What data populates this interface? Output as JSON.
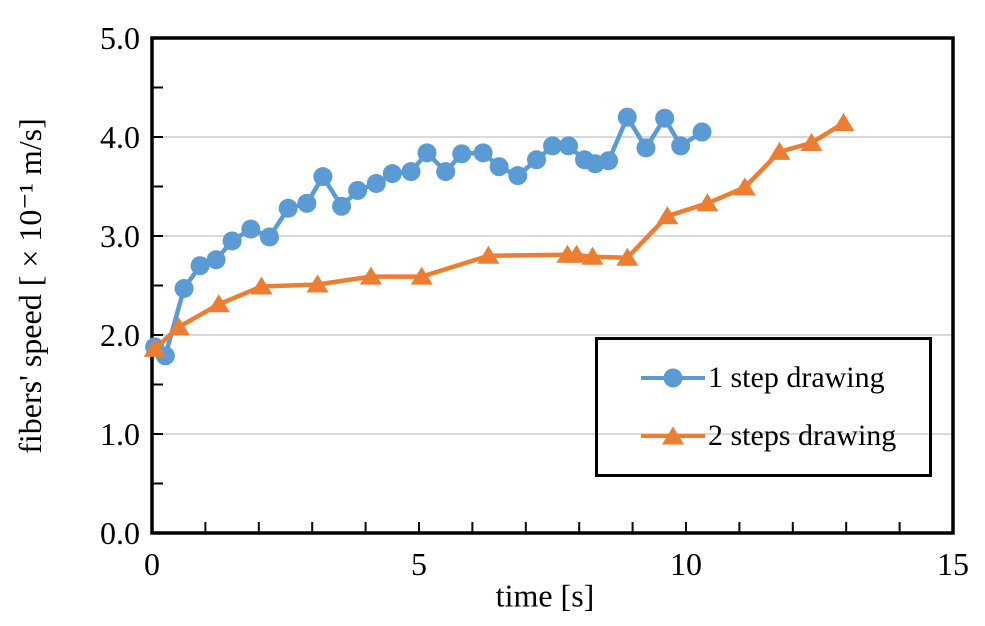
{
  "chart_data": {
    "type": "line",
    "title": "",
    "xlabel": "time [s]",
    "ylabel": "fibers' speed [ × 10⁻¹ m/s]",
    "xlim": [
      0,
      15
    ],
    "ylim": [
      0.0,
      5.0
    ],
    "x_tick_values": [
      0,
      5,
      10,
      15
    ],
    "x_tick_labels": [
      "0",
      "5",
      "10",
      "15"
    ],
    "x_minor_step": 1,
    "y_tick_values": [
      0,
      1,
      2,
      3,
      4,
      5
    ],
    "y_tick_labels": [
      "0.0",
      "1.0",
      "2.0",
      "3.0",
      "4.0",
      "5.0"
    ],
    "y_minor_step": 0.5,
    "grid": "horizontal major gridlines only",
    "legend_position": "inside lower-right, black boxed, transparent fill",
    "colors": {
      "series1": "#5B9BD5",
      "series2": "#ED7D31",
      "gridline": "#D9D9D9",
      "axis": "#000000"
    },
    "series": [
      {
        "name": "1 step drawing",
        "color": "#5B9BD5",
        "marker": "circle",
        "points": [
          [
            0.05,
            1.88
          ],
          [
            0.25,
            1.79
          ],
          [
            0.6,
            2.47
          ],
          [
            0.9,
            2.7
          ],
          [
            1.2,
            2.76
          ],
          [
            1.5,
            2.95
          ],
          [
            1.85,
            3.07
          ],
          [
            2.2,
            2.99
          ],
          [
            2.55,
            3.28
          ],
          [
            2.9,
            3.33
          ],
          [
            3.2,
            3.6
          ],
          [
            3.55,
            3.3
          ],
          [
            3.85,
            3.46
          ],
          [
            4.2,
            3.53
          ],
          [
            4.5,
            3.63
          ],
          [
            4.85,
            3.65
          ],
          [
            5.15,
            3.84
          ],
          [
            5.5,
            3.65
          ],
          [
            5.8,
            3.83
          ],
          [
            6.2,
            3.84
          ],
          [
            6.5,
            3.7
          ],
          [
            6.85,
            3.61
          ],
          [
            7.2,
            3.77
          ],
          [
            7.5,
            3.91
          ],
          [
            7.8,
            3.91
          ],
          [
            8.1,
            3.77
          ],
          [
            8.3,
            3.73
          ],
          [
            8.55,
            3.76
          ],
          [
            8.9,
            4.2
          ],
          [
            9.25,
            3.89
          ],
          [
            9.6,
            4.19
          ],
          [
            9.9,
            3.91
          ],
          [
            10.3,
            4.05
          ]
        ]
      },
      {
        "name": "2 steps drawing",
        "color": "#ED7D31",
        "marker": "triangle",
        "points": [
          [
            0.05,
            1.86
          ],
          [
            0.5,
            2.08
          ],
          [
            1.25,
            2.31
          ],
          [
            2.05,
            2.49
          ],
          [
            3.1,
            2.51
          ],
          [
            4.1,
            2.59
          ],
          [
            5.05,
            2.59
          ],
          [
            6.3,
            2.8
          ],
          [
            7.78,
            2.81
          ],
          [
            7.95,
            2.81
          ],
          [
            8.25,
            2.79
          ],
          [
            8.9,
            2.78
          ],
          [
            9.65,
            3.2
          ],
          [
            10.4,
            3.33
          ],
          [
            11.1,
            3.49
          ],
          [
            11.75,
            3.85
          ],
          [
            12.35,
            3.94
          ],
          [
            12.95,
            4.14
          ]
        ]
      }
    ]
  }
}
